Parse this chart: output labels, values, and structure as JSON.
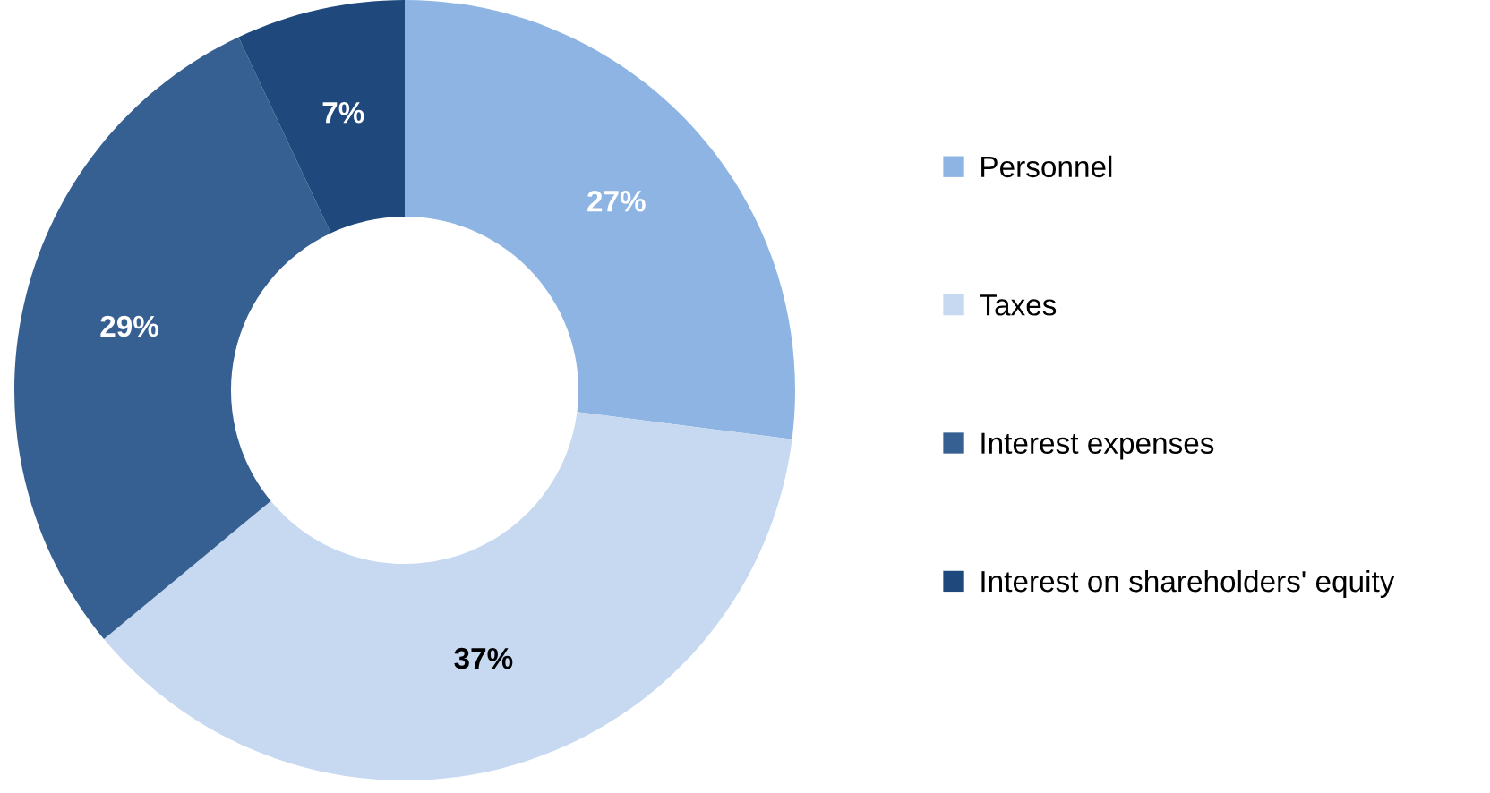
{
  "chart_data": {
    "type": "donut",
    "categories": [
      "Personnel",
      "Taxes",
      "Interest expenses",
      "Interest on shareholders' equity"
    ],
    "values": [
      27,
      37,
      29,
      7
    ],
    "colors": [
      "#8eb4e3",
      "#c6d9f1",
      "#376092",
      "#1f497d"
    ],
    "value_labels": [
      "27%",
      "37%",
      "29%",
      "7%"
    ],
    "legend": "right"
  }
}
